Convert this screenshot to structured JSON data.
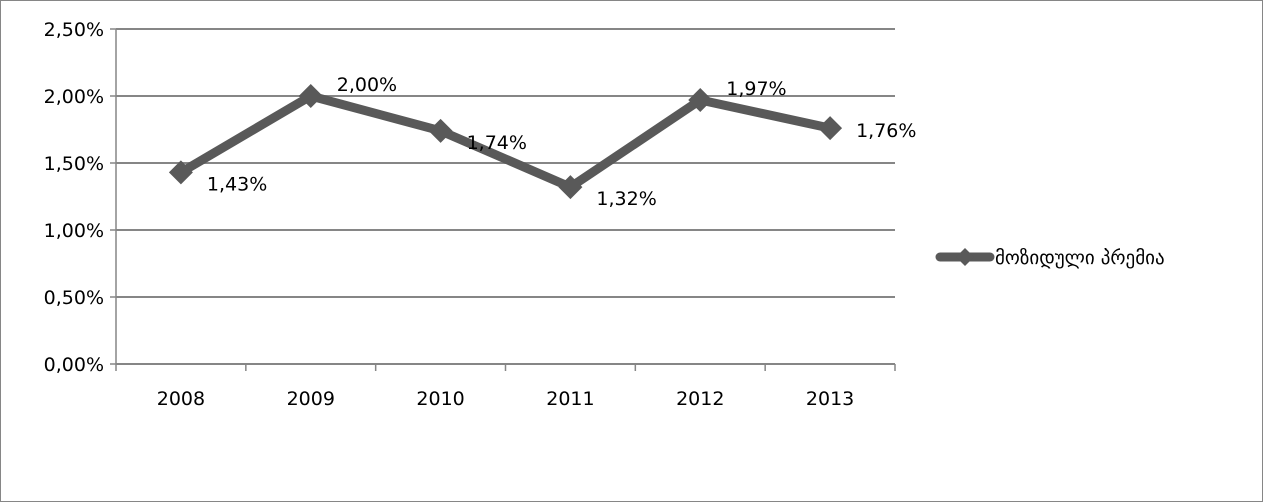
{
  "chart_data": {
    "type": "line",
    "title": "",
    "xlabel": "",
    "ylabel": "",
    "categories": [
      "2008",
      "2009",
      "2010",
      "2011",
      "2012",
      "2013"
    ],
    "series": [
      {
        "name": "მოზიდული პრემია",
        "values": [
          1.43,
          2.0,
          1.74,
          1.32,
          1.97,
          1.76
        ],
        "data_labels": [
          "1,43%",
          "2,00%",
          "1,74%",
          "1,32%",
          "1,97%",
          "1,76%"
        ],
        "color": "#595959"
      }
    ],
    "ylim": [
      0,
      2.5
    ],
    "yticks": [
      0,
      0.5,
      1.0,
      1.5,
      2.0,
      2.5
    ],
    "ytick_labels": [
      "0,00%",
      "0,50%",
      "1,00%",
      "1,50%",
      "2,00%",
      "2,50%"
    ],
    "grid": true,
    "legend": "right",
    "marker": "diamond",
    "gridline_color": "#868686"
  }
}
